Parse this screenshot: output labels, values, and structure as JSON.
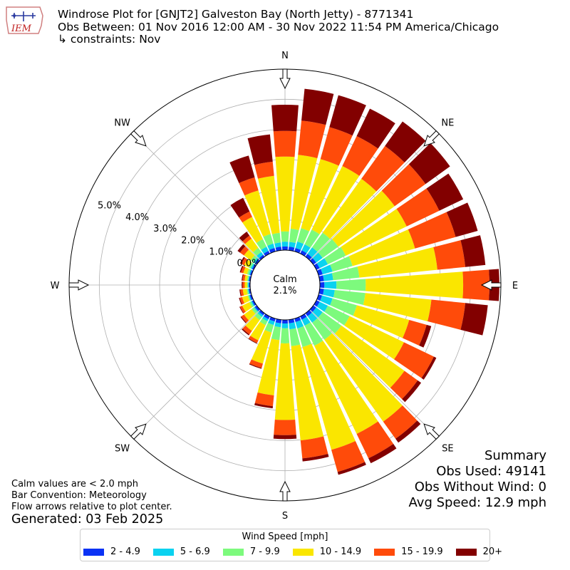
{
  "header": {
    "title": "Windrose Plot for [GNJT2] Galveston Bay (North Jetty) - 8771341",
    "obs_between": "Obs Between: 01 Nov 2016 12:00 AM - 30 Nov 2022 11:54 PM America/Chicago",
    "constraints": "↳ constraints: Nov",
    "logo_text": "IEM"
  },
  "summary": {
    "title": "Summary",
    "obs_used": "Obs Used: 49141",
    "obs_without_wind": "Obs Without Wind: 0",
    "avg_speed": "Avg Speed: 12.9 mph"
  },
  "notes": {
    "calm_note": "Calm values are < 2.0 mph",
    "bar_convention": "Bar Convention: Meteorology",
    "flow_arrows": "Flow arrows relative to plot center.",
    "generated": "Generated: 03 Feb 2025"
  },
  "chart_data": {
    "type": "windrose",
    "calm_label": "Calm",
    "calm_value": "2.1%",
    "radial_tick_labels": [
      "0.0%",
      "1.0%",
      "2.0%",
      "3.0%",
      "4.0%",
      "5.0%"
    ],
    "radial_ticks": [
      0,
      1,
      2,
      3,
      4,
      5
    ],
    "rmax": 6.0,
    "compass_labels": [
      {
        "label": "N",
        "dir": 0
      },
      {
        "label": "NE",
        "dir": 45
      },
      {
        "label": "E",
        "dir": 90
      },
      {
        "label": "SE",
        "dir": 135
      },
      {
        "label": "S",
        "dir": 180
      },
      {
        "label": "SW",
        "dir": 225
      },
      {
        "label": "W",
        "dir": 270
      },
      {
        "label": "NW",
        "dir": 315
      }
    ],
    "legend_title": "Wind Speed [mph]",
    "bins": [
      {
        "label": "2 - 4.9",
        "color": "#0a32f5"
      },
      {
        "label": "5 - 6.9",
        "color": "#0ad2f0"
      },
      {
        "label": "7 - 9.9",
        "color": "#7dfa7d"
      },
      {
        "label": "10 - 14.9",
        "color": "#fae600"
      },
      {
        "label": "15 - 19.9",
        "color": "#ff4b0a"
      },
      {
        "label": "20+",
        "color": "#820000"
      }
    ],
    "directions": [
      0,
      10,
      20,
      30,
      40,
      50,
      60,
      70,
      80,
      90,
      100,
      110,
      120,
      130,
      140,
      150,
      160,
      170,
      180,
      190,
      200,
      210,
      220,
      230,
      240,
      250,
      260,
      270,
      280,
      290,
      300,
      310,
      320,
      330,
      340,
      350
    ],
    "cumulative": [
      [
        0.12,
        0.28,
        0.62,
        3.1,
        3.95,
        4.82
      ],
      [
        0.12,
        0.28,
        0.72,
        3.18,
        4.32,
        5.38
      ],
      [
        0.12,
        0.34,
        0.8,
        3.18,
        4.28,
        5.38
      ],
      [
        0.12,
        0.34,
        0.88,
        3.22,
        4.32,
        5.33
      ],
      [
        0.12,
        0.38,
        0.98,
        3.18,
        4.52,
        5.52
      ],
      [
        0.12,
        0.38,
        1.02,
        3.32,
        4.58,
        5.58
      ],
      [
        0.12,
        0.42,
        1.08,
        3.32,
        4.52,
        5.4
      ],
      [
        0.14,
        0.48,
        1.17,
        3.32,
        4.72,
        5.48
      ],
      [
        0.14,
        0.45,
        1.32,
        3.92,
        4.85,
        5.52
      ],
      [
        0.15,
        0.55,
        1.52,
        4.75,
        5.62,
        5.95
      ],
      [
        0.14,
        0.5,
        1.52,
        3.72,
        4.85,
        5.6
      ],
      [
        0.12,
        0.48,
        1.32,
        3.12,
        3.72,
        3.88
      ],
      [
        0.12,
        0.42,
        1.22,
        3.22,
        4.32,
        4.41
      ],
      [
        0.12,
        0.38,
        1.15,
        3.72,
        4.26,
        4.4
      ],
      [
        0.12,
        0.38,
        1.08,
        4.42,
        5.12,
        5.28
      ],
      [
        0.12,
        0.34,
        1.08,
        4.32,
        5.22,
        5.4
      ],
      [
        0.12,
        0.34,
        0.98,
        4.52,
        5.28,
        5.38
      ],
      [
        0.12,
        0.32,
        0.88,
        4.02,
        4.62,
        4.72
      ],
      [
        0.12,
        0.28,
        0.78,
        3.32,
        3.82,
        3.95
      ],
      [
        0.12,
        0.25,
        0.68,
        2.52,
        2.88,
        2.95
      ],
      [
        0.1,
        0.22,
        0.48,
        1.55,
        1.7,
        1.73
      ],
      [
        0.1,
        0.18,
        0.32,
        0.88,
        0.98,
        1.0
      ],
      [
        0.08,
        0.15,
        0.28,
        0.72,
        0.86,
        0.9
      ],
      [
        0.08,
        0.12,
        0.21,
        0.52,
        0.63,
        0.66
      ],
      [
        0.06,
        0.1,
        0.16,
        0.42,
        0.5,
        0.52
      ],
      [
        0.06,
        0.09,
        0.13,
        0.32,
        0.4,
        0.43
      ],
      [
        0.05,
        0.08,
        0.12,
        0.25,
        0.33,
        0.36
      ],
      [
        0.04,
        0.07,
        0.1,
        0.18,
        0.25,
        0.28
      ],
      [
        0.05,
        0.07,
        0.11,
        0.19,
        0.26,
        0.29
      ],
      [
        0.05,
        0.09,
        0.15,
        0.28,
        0.36,
        0.4
      ],
      [
        0.06,
        0.11,
        0.18,
        0.35,
        0.45,
        0.5
      ],
      [
        0.07,
        0.14,
        0.25,
        0.52,
        0.68,
        0.78
      ],
      [
        0.08,
        0.19,
        0.36,
        0.74,
        0.86,
        1.02
      ],
      [
        0.1,
        0.25,
        0.53,
        1.35,
        1.55,
        2.05
      ],
      [
        0.12,
        0.27,
        0.6,
        2.1,
        2.55,
        3.3
      ],
      [
        0.12,
        0.26,
        0.58,
        2.48,
        2.95,
        3.86
      ]
    ]
  }
}
